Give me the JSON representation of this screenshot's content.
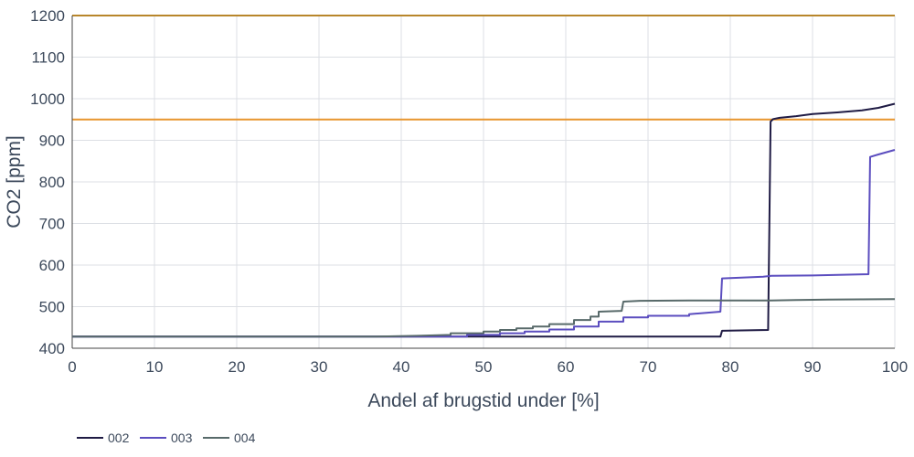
{
  "chart_data": {
    "type": "line",
    "title": "",
    "xlabel": "Andel af brugstid under [%]",
    "ylabel": "CO2 [ppm]",
    "xlim": [
      0,
      100
    ],
    "ylim": [
      400,
      1200
    ],
    "xticks": [
      0,
      10,
      20,
      30,
      40,
      50,
      60,
      70,
      80,
      90,
      100
    ],
    "yticks": [
      400,
      500,
      600,
      700,
      800,
      900,
      1000,
      1100,
      1200
    ],
    "grid": true,
    "legend_position": "bottom-left",
    "reference_lines": [
      {
        "y": 1200,
        "color": "#b8862b"
      },
      {
        "y": 950,
        "color": "#e8962e"
      }
    ],
    "series": [
      {
        "name": "002",
        "color": "#1f1b44",
        "x": [
          0,
          60,
          78.8,
          79,
          84.6,
          84.9,
          85.2,
          86,
          88,
          90,
          93,
          96,
          98,
          100
        ],
        "y": [
          428,
          428,
          428,
          442,
          444,
          945,
          951,
          954,
          958,
          963,
          967,
          972,
          978,
          988
        ]
      },
      {
        "name": "003",
        "color": "#5b4dbf",
        "x": [
          0,
          40,
          48,
          48,
          52,
          52,
          55,
          55,
          58,
          58,
          61,
          61,
          64,
          64,
          67,
          67,
          70,
          70,
          75,
          75,
          78.8,
          79,
          84,
          85,
          90,
          96.8,
          97,
          98,
          100
        ],
        "y": [
          428,
          428,
          428,
          432,
          432,
          436,
          436,
          440,
          440,
          445,
          445,
          452,
          452,
          464,
          464,
          474,
          474,
          478,
          478,
          482,
          488,
          568,
          572,
          574,
          575,
          578,
          860,
          866,
          877
        ]
      },
      {
        "name": "004",
        "color": "#586a6a",
        "x": [
          0,
          37,
          42,
          46,
          46,
          50,
          50,
          52,
          52,
          54,
          54,
          56,
          56,
          58,
          58,
          61,
          61,
          63,
          63,
          64,
          64,
          66.8,
          67,
          69,
          75,
          85,
          88,
          92,
          100
        ],
        "y": [
          428,
          428,
          430,
          432,
          436,
          436,
          440,
          440,
          444,
          444,
          448,
          448,
          452,
          452,
          458,
          458,
          468,
          468,
          476,
          476,
          488,
          490,
          512,
          514,
          515,
          515,
          516,
          517,
          518
        ]
      }
    ]
  }
}
